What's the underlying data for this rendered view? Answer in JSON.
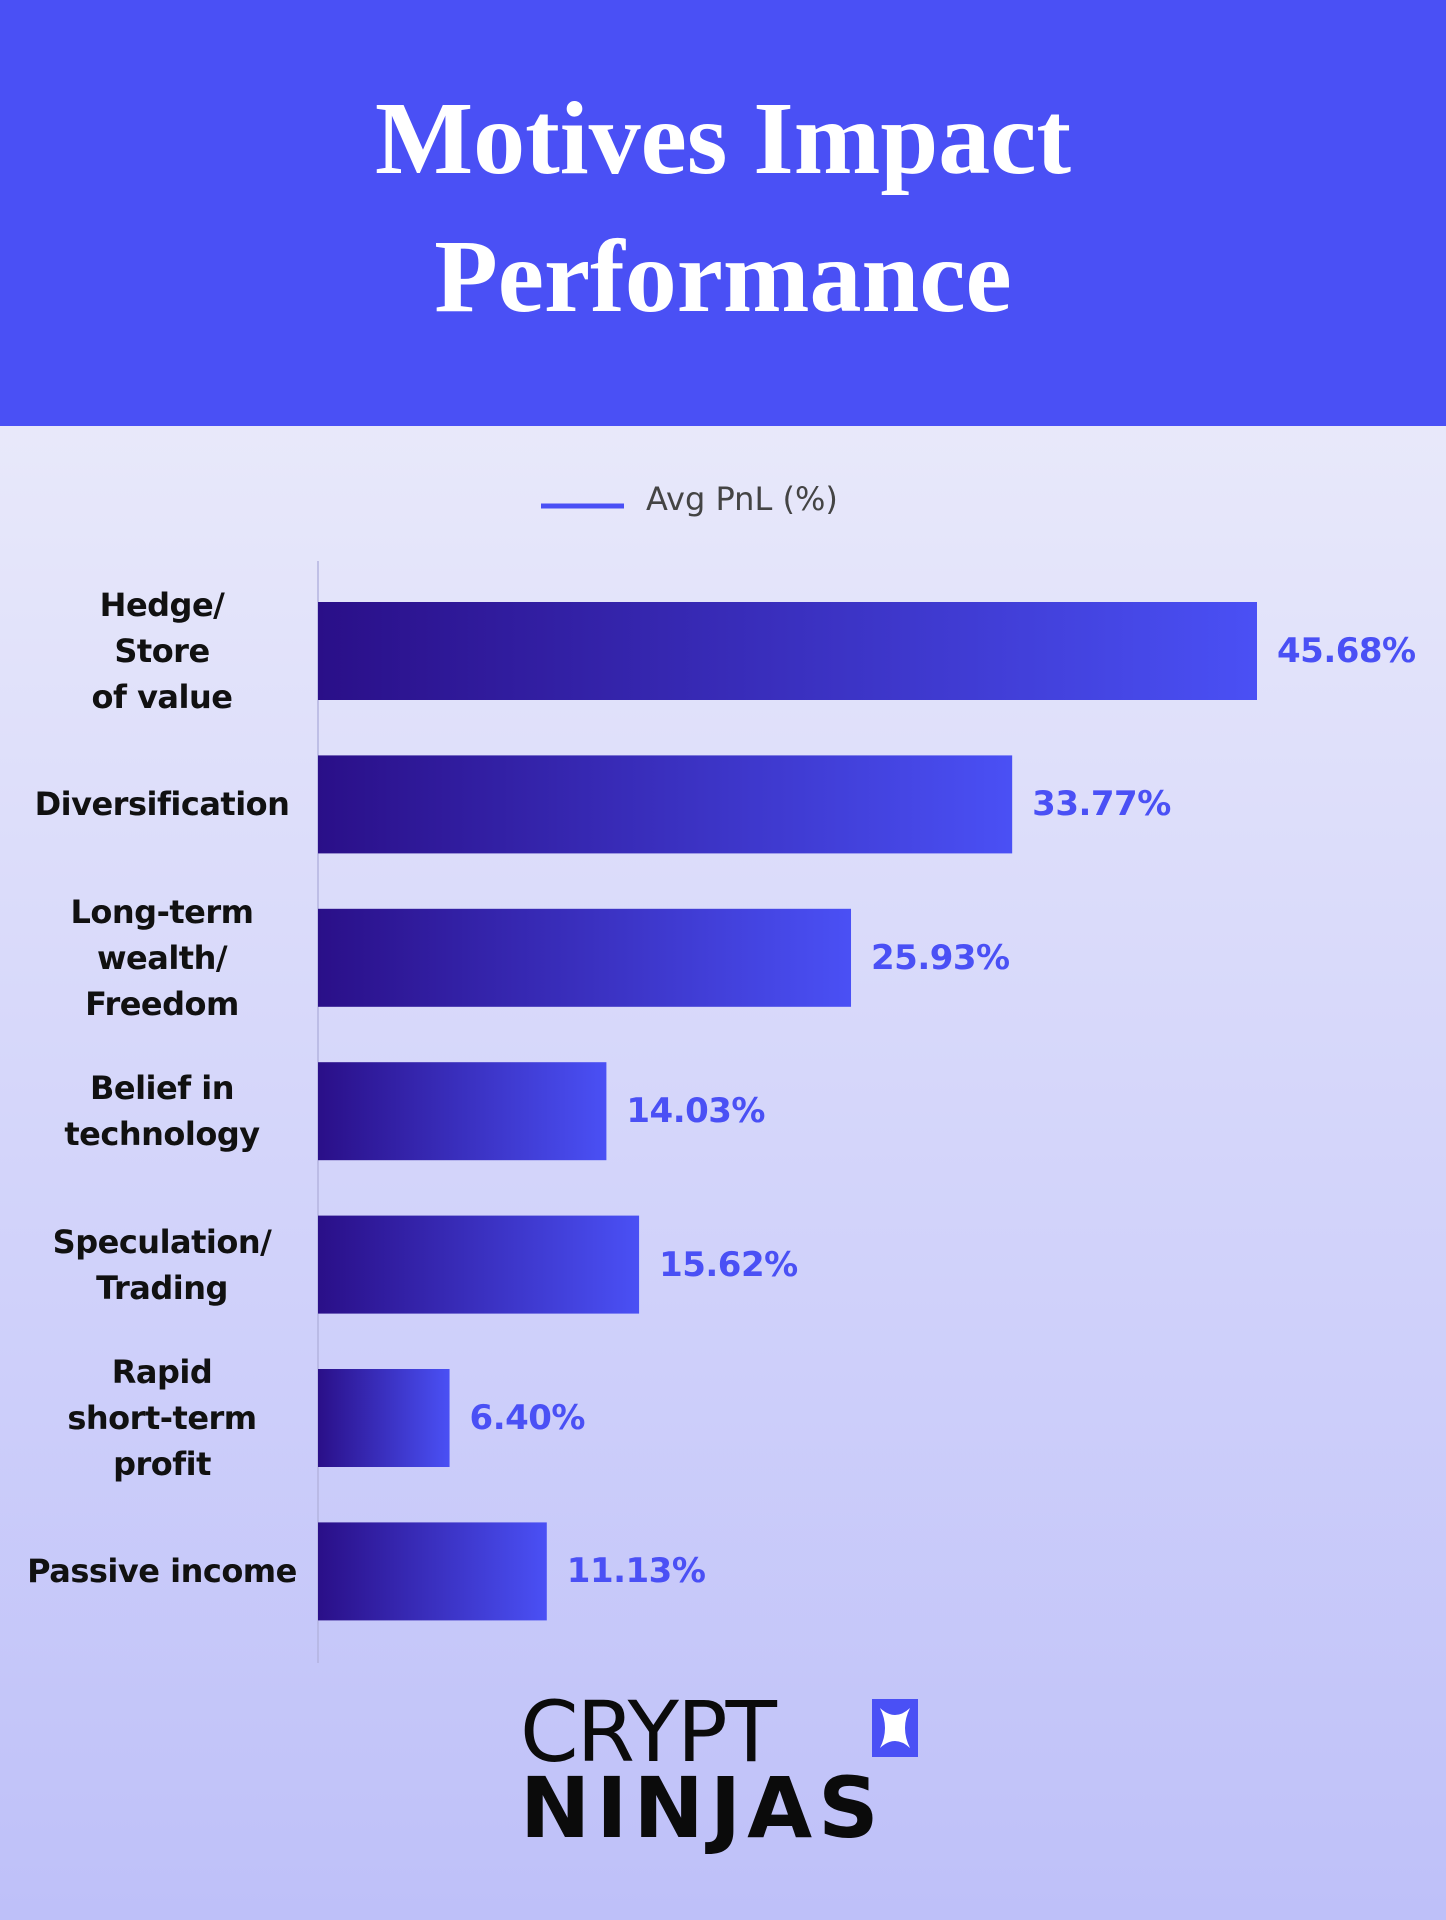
{
  "chart_data": {
    "type": "bar",
    "orientation": "horizontal",
    "title": "Motives Impact Performance",
    "categories": [
      "Hedge/\nStore\nof value",
      "Diversification",
      "Long-term\nwealth/\nFreedom",
      "Belief in\ntechnology",
      "Speculation/\nTrading",
      "Rapid\nshort-term\nprofit",
      "Passive income"
    ],
    "series": [
      {
        "name": "Avg PnL (%)",
        "color": "#4a50f5",
        "values": [
          45.68,
          33.77,
          25.93,
          14.03,
          15.62,
          6.4,
          11.13
        ],
        "value_labels": [
          "45.68%",
          "33.77%",
          "25.93%",
          "14.03%",
          "15.62%",
          "6.40%",
          "11.13%"
        ]
      }
    ],
    "legend": "top"
  },
  "logo": {
    "line1": "CRYPT",
    "line2": "NINJAS"
  }
}
